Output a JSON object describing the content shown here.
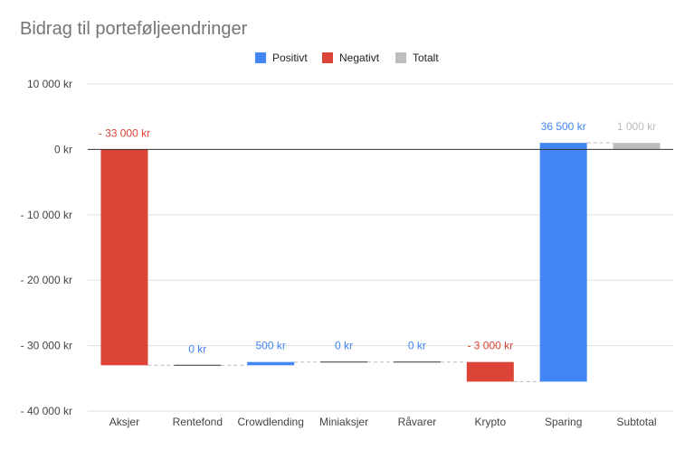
{
  "chart_data": {
    "type": "waterfall",
    "title": "Bidrag til porteføljeendringer",
    "legend": {
      "position": "top",
      "items": [
        {
          "key": "positive",
          "label": "Positivt",
          "color": "#4285f4"
        },
        {
          "key": "negative",
          "label": "Negativt",
          "color": "#db4437"
        },
        {
          "key": "total",
          "label": "Totalt",
          "color": "#bdbdbd"
        }
      ]
    },
    "categories": [
      "Aksjer",
      "Rentefond",
      "Crowdlending",
      "Miniaksjer",
      "Råvarer",
      "Krypto",
      "Sparing",
      "Subtotal"
    ],
    "values": [
      -33000,
      0,
      500,
      0,
      0,
      -3000,
      36500,
      1000
    ],
    "kinds": [
      "negative",
      "positive",
      "positive",
      "positive",
      "positive",
      "negative",
      "positive",
      "total"
    ],
    "labels": [
      "- 33 000 kr",
      "0 kr",
      "500 kr",
      "0 kr",
      "0 kr",
      "- 3 000 kr",
      "36 500 kr",
      "1 000 kr"
    ],
    "ylim": [
      -40000,
      10000
    ],
    "yticks": [
      10000,
      0,
      -10000,
      -20000,
      -30000,
      -40000
    ],
    "ytick_labels": [
      "10 000 kr",
      "0 kr",
      "- 10 000 kr",
      "- 20 000 kr",
      "- 30 000 kr",
      "- 40 000 kr"
    ],
    "grid": true,
    "xlabel": "",
    "ylabel": ""
  }
}
